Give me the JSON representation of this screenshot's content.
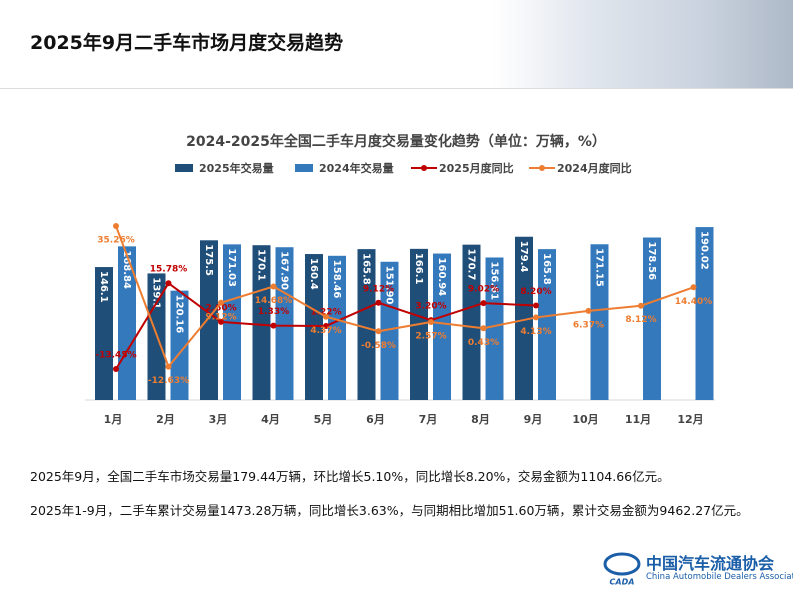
{
  "header": {
    "title": "2025年9月二手车市场月度交易趋势"
  },
  "chart_data": {
    "type": "bar-line",
    "title": "2024-2025年全国二手车月度交易量变化趋势（单位：万辆，%）",
    "categories": [
      "1月",
      "2月",
      "3月",
      "4月",
      "5月",
      "6月",
      "7月",
      "8月",
      "9月",
      "10月",
      "11月",
      "12月"
    ],
    "ylim": [
      0,
      200
    ],
    "y2lim": [
      -24,
      38
    ],
    "series": [
      {
        "name": "2025年交易量",
        "kind": "bar",
        "color": "#1f4e79",
        "values": [
          146.1,
          139.1,
          175.5,
          170.1,
          160.4,
          165.8,
          166.1,
          170.7,
          179.4,
          null,
          null,
          null
        ],
        "value_labels": [
          "146.1",
          "139.1",
          "175.5",
          "170.1",
          "160.4",
          "165.8",
          "166.1",
          "170.7",
          "179.4",
          null,
          null,
          null
        ]
      },
      {
        "name": "2024年交易量",
        "kind": "bar",
        "color": "#3579bd",
        "values": [
          168.84,
          120.16,
          171.03,
          167.9,
          158.46,
          151.9,
          160.94,
          156.61,
          165.8,
          171.15,
          178.56,
          190.02
        ],
        "value_labels": [
          "168.84",
          "120.16",
          "171.03",
          "167.90",
          "158.46",
          "151.90",
          "160.94",
          "156.61",
          "165.8",
          "171.15",
          "178.56",
          "190.02"
        ]
      },
      {
        "name": "2025月度同比",
        "kind": "line",
        "axis": "y2",
        "color": "#c00000",
        "values": [
          -13.45,
          15.78,
          2.6,
          1.33,
          1.22,
          9.12,
          3.2,
          9.02,
          8.2,
          null,
          null,
          null
        ],
        "value_labels": [
          "-13.45%",
          "15.78%",
          "2.60%",
          "1.33%",
          "1.22%",
          "9.12%",
          "3.20%",
          "9.02%",
          "8.20%",
          null,
          null,
          null
        ]
      },
      {
        "name": "2024月度同比",
        "kind": "line",
        "axis": "y2",
        "color": "#ed7d31",
        "values": [
          35.26,
          -12.63,
          9.12,
          14.68,
          4.37,
          -0.58,
          2.57,
          0.43,
          4.13,
          6.37,
          8.12,
          14.4
        ],
        "value_labels": [
          "35.26%",
          "-12.63%",
          "9.12%",
          "14.68%",
          "4.37%",
          "-0.58%",
          "2.57%",
          "0.43%",
          "4.13%",
          "6.37%",
          "8.12%",
          "14.40%"
        ]
      }
    ]
  },
  "notes": [
    "2025年9月，全国二手车市场交易量179.44万辆，环比增长5.10%，同比增长8.20%，交易金额为1104.66亿元。",
    "2025年1-9月，二手车累计交易量1473.28万辆，同比增长3.63%，与同期相比增加51.60万辆，累计交易金额为9462.27亿元。"
  ],
  "logo": {
    "name": "中国汽车流通协会",
    "english": "China Automobile Dealers Association",
    "mark": "CADA"
  }
}
